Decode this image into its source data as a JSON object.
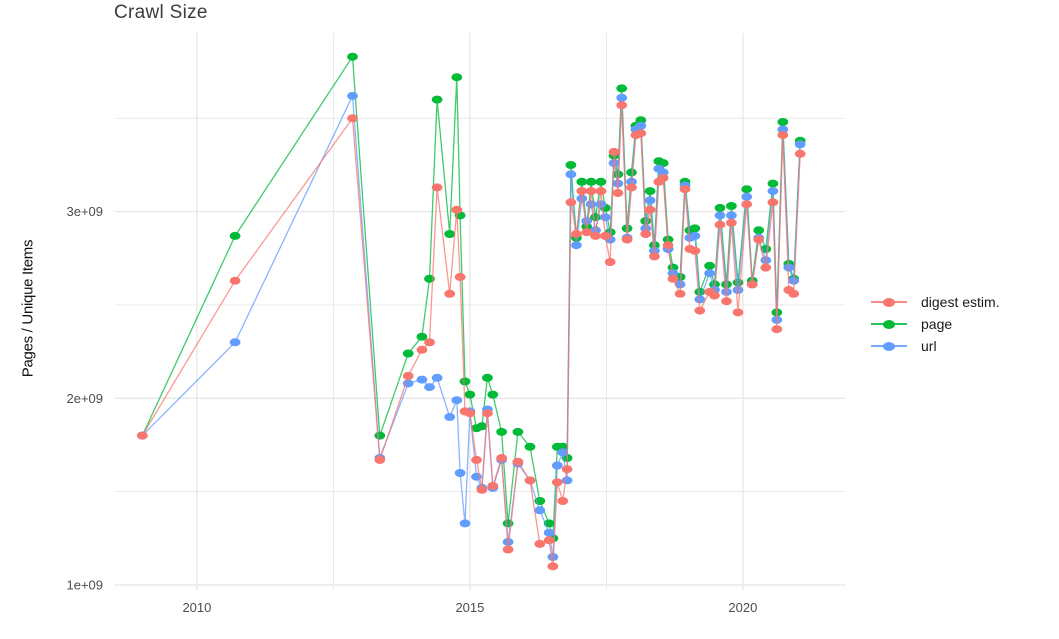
{
  "header": {
    "title": "Crawl Size"
  },
  "chart_data": {
    "type": "line",
    "title": "Crawl Size",
    "xlabel": "",
    "ylabel": "Pages / Unique Items",
    "values_unit": "1e9 (billions of pages / unique items)",
    "xlim": [
      2008.5,
      2021.87
    ],
    "ylim": [
      0.973,
      3.957
    ],
    "grid": true,
    "legend_position": "right",
    "x_ticks_major": [
      2010,
      2015,
      2020
    ],
    "x_tick_labels": [
      "2010",
      "2015",
      "2020"
    ],
    "x_ticks_minor": [
      2012.5,
      2017.5
    ],
    "y_ticks_major": [
      1,
      2,
      3
    ],
    "y_tick_labels": [
      "1e+09",
      "2e+09",
      "3e+09"
    ],
    "y_ticks_minor": [
      1.5,
      2.5,
      3.5
    ],
    "x": [
      2009.0,
      2010.7,
      2012.85,
      2013.35,
      2013.87,
      2014.12,
      2014.26,
      2014.4,
      2014.63,
      2014.76,
      2014.82,
      2014.91,
      2015.0,
      2015.12,
      2015.22,
      2015.32,
      2015.42,
      2015.58,
      2015.7,
      2015.88,
      2016.1,
      2016.28,
      2016.45,
      2016.52,
      2016.6,
      2016.7,
      2016.78,
      2016.85,
      2016.95,
      2017.05,
      2017.14,
      2017.22,
      2017.3,
      2017.4,
      2017.48,
      2017.57,
      2017.64,
      2017.71,
      2017.78,
      2017.88,
      2017.96,
      2018.04,
      2018.13,
      2018.22,
      2018.3,
      2018.38,
      2018.46,
      2018.54,
      2018.63,
      2018.72,
      2018.85,
      2018.94,
      2019.03,
      2019.12,
      2019.21,
      2019.39,
      2019.48,
      2019.58,
      2019.7,
      2019.79,
      2019.91,
      2020.07,
      2020.17,
      2020.29,
      2020.42,
      2020.55,
      2020.62,
      2020.73,
      2020.84,
      2020.93,
      2021.05
    ],
    "series": [
      {
        "name": "digest estim.",
        "color": "#F8766D",
        "values": [
          1.8,
          2.63,
          3.5,
          1.67,
          2.12,
          2.26,
          2.3,
          3.13,
          2.56,
          3.01,
          2.65,
          1.93,
          1.92,
          1.67,
          1.51,
          1.92,
          1.53,
          1.68,
          1.19,
          1.66,
          1.56,
          1.22,
          1.24,
          1.1,
          1.55,
          1.45,
          1.62,
          3.05,
          2.88,
          3.11,
          2.89,
          3.11,
          2.87,
          3.11,
          2.87,
          2.73,
          3.32,
          3.1,
          3.57,
          2.85,
          3.13,
          3.41,
          3.42,
          2.88,
          3.01,
          2.76,
          3.16,
          3.18,
          2.82,
          2.64,
          2.56,
          3.12,
          2.8,
          2.79,
          2.47,
          2.57,
          2.55,
          2.93,
          2.52,
          2.94,
          2.46,
          3.04,
          2.61,
          2.85,
          2.7,
          3.05,
          2.37,
          3.41,
          2.58,
          2.56,
          3.31
        ]
      },
      {
        "name": "page",
        "color": "#00BA38",
        "values": [
          1.8,
          2.87,
          3.83,
          1.8,
          2.24,
          2.33,
          2.64,
          3.6,
          2.88,
          3.72,
          2.98,
          2.09,
          2.02,
          1.84,
          1.85,
          2.11,
          2.02,
          1.82,
          1.33,
          1.82,
          1.74,
          1.45,
          1.33,
          1.25,
          1.74,
          1.74,
          1.68,
          3.25,
          2.86,
          3.16,
          2.92,
          3.16,
          2.97,
          3.16,
          3.02,
          2.89,
          3.3,
          3.2,
          3.66,
          2.91,
          3.21,
          3.46,
          3.49,
          2.95,
          3.11,
          2.82,
          3.27,
          3.26,
          2.85,
          2.7,
          2.65,
          3.16,
          2.9,
          2.91,
          2.57,
          2.71,
          2.61,
          3.02,
          2.61,
          3.03,
          2.62,
          3.12,
          2.63,
          2.9,
          2.8,
          3.15,
          2.46,
          3.48,
          2.72,
          2.64,
          3.38
        ]
      },
      {
        "name": "url",
        "color": "#619CFF",
        "values": [
          1.8,
          2.3,
          3.62,
          1.68,
          2.08,
          2.1,
          2.06,
          2.11,
          1.9,
          1.99,
          1.6,
          1.33,
          1.93,
          1.58,
          1.52,
          1.94,
          1.52,
          1.67,
          1.23,
          1.65,
          1.56,
          1.4,
          1.28,
          1.15,
          1.64,
          1.71,
          1.56,
          3.2,
          2.82,
          3.07,
          2.95,
          3.04,
          2.9,
          3.04,
          2.97,
          2.85,
          3.26,
          3.15,
          3.61,
          2.86,
          3.16,
          3.44,
          3.46,
          2.91,
          3.06,
          2.79,
          3.23,
          3.21,
          2.8,
          2.67,
          2.61,
          3.14,
          2.86,
          2.87,
          2.53,
          2.67,
          2.58,
          2.98,
          2.57,
          2.98,
          2.58,
          3.08,
          2.61,
          2.86,
          2.74,
          3.11,
          2.42,
          3.44,
          2.7,
          2.63,
          3.36
        ]
      }
    ],
    "legend": {
      "items": [
        "digest estim.",
        "page",
        "url"
      ]
    },
    "style": {
      "grid_color": "#e7e7e7",
      "tick_label_color": "#4d4d4d",
      "title_color": "#3c3c3c",
      "background": "#ffffff"
    }
  }
}
